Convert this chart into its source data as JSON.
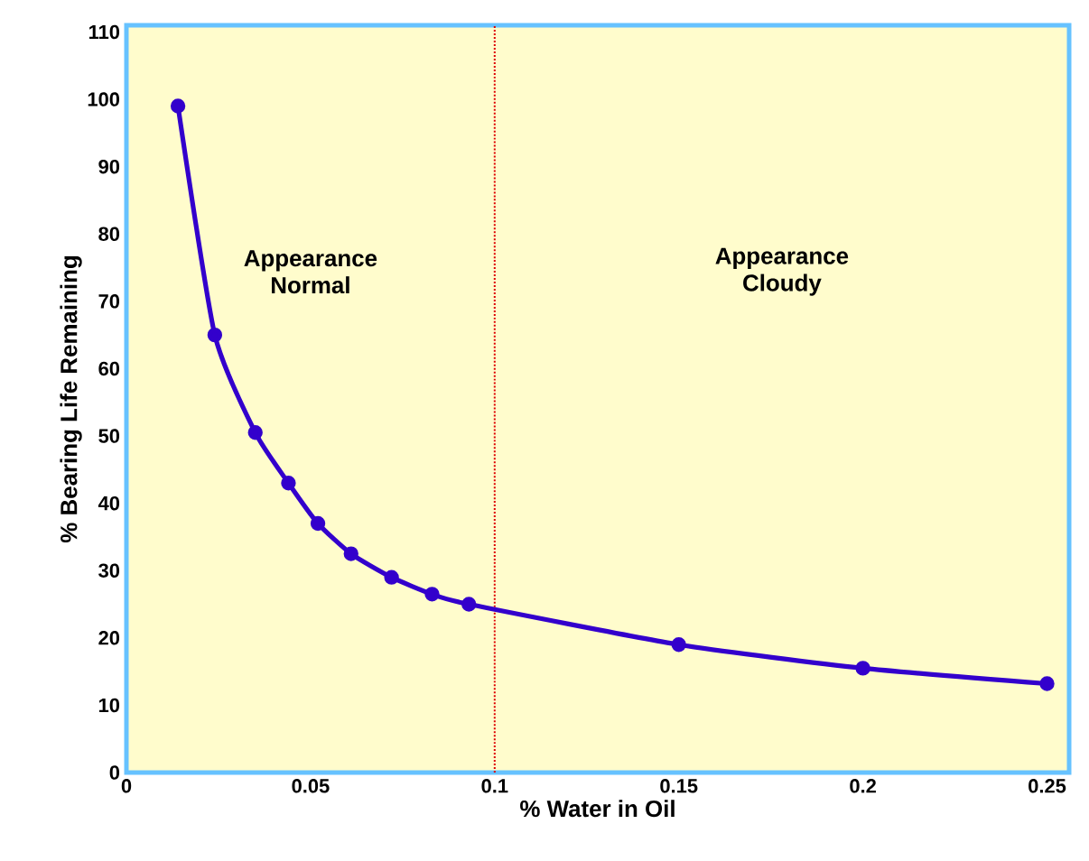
{
  "chart_data": {
    "type": "line",
    "xlabel": "% Water in Oil",
    "ylabel": "% Bearing Life Remaining",
    "x": [
      0.014,
      0.024,
      0.035,
      0.044,
      0.052,
      0.061,
      0.072,
      0.083,
      0.093,
      0.15,
      0.2,
      0.25
    ],
    "series": [
      {
        "color": "#3300cc",
        "values": [
          99,
          65,
          50.5,
          43,
          37,
          32.5,
          29,
          26.5,
          25,
          19,
          15.5,
          13.2
        ]
      }
    ],
    "xlim": [
      0,
      0.256
    ],
    "ylim": [
      0,
      111
    ],
    "xticks": [
      0,
      0.05,
      0.1,
      0.15,
      0.2,
      0.25
    ],
    "yticks": [
      0,
      10,
      20,
      30,
      40,
      50,
      60,
      70,
      80,
      90,
      100,
      110
    ],
    "ref_lines": [
      {
        "axis": "x",
        "value": 0.1,
        "color": "#dd0000",
        "line_style": "dotted"
      }
    ],
    "annotations": [
      "Appearance Normal",
      "Appearance Cloudy"
    ],
    "marker": "circle",
    "line_style": "solid",
    "grid": false
  }
}
